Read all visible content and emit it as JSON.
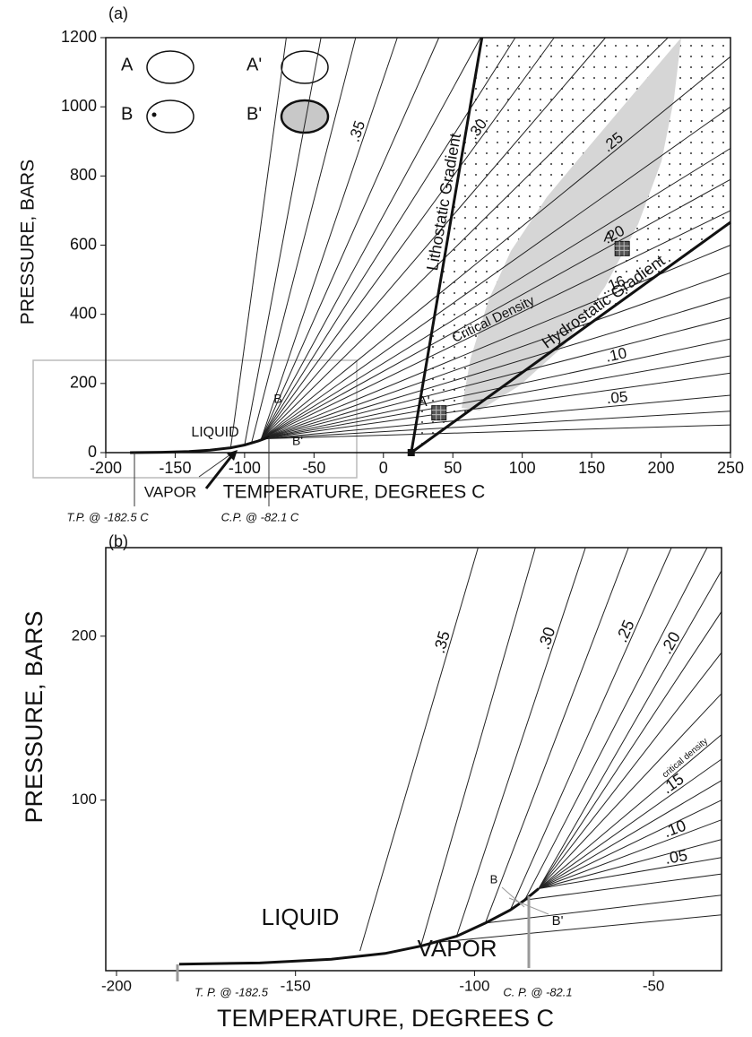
{
  "chart_data": [
    {
      "type": "line",
      "panel_label": "(a)",
      "x_label": "TEMPERATURE, DEGREES C",
      "y_label": "PRESSURE, BARS",
      "xlim": [
        -200,
        250
      ],
      "ylim": [
        0,
        1200
      ],
      "xticks": [
        -200,
        -150,
        -100,
        -50,
        0,
        50,
        100,
        150,
        200,
        250
      ],
      "yticks": [
        0,
        200,
        400,
        600,
        800,
        1000,
        1200
      ],
      "boiling_curve": {
        "x": [
          -182.5,
          -160,
          -140,
          -125,
          -110,
          -100,
          -90,
          -82.1
        ],
        "y": [
          0,
          1,
          3,
          7,
          14,
          22,
          34,
          46
        ]
      },
      "isochores": [
        {
          "x": [
            -110,
            -70
          ],
          "y": [
            15,
            1200
          ]
        },
        {
          "x": [
            -100,
            -45
          ],
          "y": [
            22,
            1200
          ]
        },
        {
          "x": [
            -95,
            -20
          ],
          "y": [
            28,
            1200
          ]
        },
        {
          "name": ".35",
          "x": [
            -88,
            10
          ],
          "y": [
            40,
            1200
          ]
        },
        {
          "x": [
            -88,
            40
          ],
          "y": [
            40,
            1200
          ]
        },
        {
          "x": [
            -88,
            70
          ],
          "y": [
            40,
            1200
          ]
        },
        {
          "x": [
            -88,
            95
          ],
          "y": [
            40,
            1200
          ]
        },
        {
          "name": ".30",
          "x": [
            -88,
            123
          ],
          "y": [
            40,
            1200
          ]
        },
        {
          "x": [
            -88,
            160
          ],
          "y": [
            40,
            1200
          ]
        },
        {
          "x": [
            -88,
            205
          ],
          "y": [
            40,
            1200
          ]
        },
        {
          "name": ".25",
          "x": [
            -88,
            250
          ],
          "y": [
            40,
            1145
          ]
        },
        {
          "x": [
            -88,
            250
          ],
          "y": [
            40,
            1000
          ]
        },
        {
          "x": [
            -88,
            250
          ],
          "y": [
            40,
            880
          ]
        },
        {
          "name": ".20",
          "x": [
            -88,
            250
          ],
          "y": [
            40,
            790
          ]
        },
        {
          "name": ".16",
          "x": [
            -88,
            250
          ],
          "y": [
            40,
            600
          ]
        },
        {
          "x": [
            -88,
            250
          ],
          "y": [
            40,
            520
          ]
        },
        {
          "x": [
            -88,
            250
          ],
          "y": [
            40,
            450
          ]
        },
        {
          "x": [
            -88,
            250
          ],
          "y": [
            40,
            390
          ]
        },
        {
          "name": ".10",
          "x": [
            -88,
            250
          ],
          "y": [
            40,
            329
          ]
        },
        {
          "x": [
            -88,
            250
          ],
          "y": [
            40,
            280
          ]
        },
        {
          "x": [
            -88,
            250
          ],
          "y": [
            40,
            230
          ]
        },
        {
          "name": ".05",
          "x": [
            -88,
            250
          ],
          "y": [
            40,
            166
          ]
        },
        {
          "x": [
            -88,
            250
          ],
          "y": [
            40,
            120
          ]
        },
        {
          "x": [
            -88,
            250
          ],
          "y": [
            40,
            80
          ]
        }
      ],
      "critical_density": {
        "name": "Critical Density",
        "x": [
          -88,
          250
        ],
        "y": [
          40,
          700
        ]
      },
      "gradients": [
        {
          "name": "Lithostatic Gradient",
          "x": [
            20,
            71
          ],
          "y": [
            0,
            1200
          ]
        },
        {
          "name": "Hydrostatic Gradient",
          "x": [
            20,
            250
          ],
          "y": [
            0,
            666
          ]
        }
      ],
      "points": [
        {
          "name": "A",
          "x": 172,
          "y": 590
        },
        {
          "name": "A'",
          "x": 40,
          "y": 115
        }
      ],
      "annotations": [
        "LIQUID",
        "VAPOR",
        "B",
        "B'",
        "T.P. @ -182.5 C",
        "C.P. @ -82.1 C"
      ],
      "legend": [
        "A",
        "B",
        "A'",
        "B'"
      ]
    },
    {
      "type": "line",
      "panel_label": "(b)",
      "x_label": "TEMPERATURE, DEGREES C",
      "y_label": "PRESSURE, BARS",
      "xlim": [
        -203,
        -31
      ],
      "ylim": [
        -4,
        254
      ],
      "xticks": [
        -200,
        -150,
        -100,
        -50
      ],
      "yticks": [
        100,
        200
      ],
      "boiling_curve": {
        "x": [
          -182.5,
          -160,
          -140,
          -125,
          -115,
          -105,
          -97,
          -90,
          -86,
          -82.1
        ],
        "y": [
          0,
          0.7,
          3,
          6.5,
          11,
          17,
          25,
          33,
          39,
          46
        ]
      },
      "isochores": [
        {
          "name": ".35",
          "x": [
            -132,
            -99
          ],
          "y": [
            8,
            254
          ]
        },
        {
          "x": [
            -115,
            -83
          ],
          "y": [
            11,
            254
          ]
        },
        {
          "name": ".30",
          "x": [
            -105,
            -69
          ],
          "y": [
            17,
            254
          ]
        },
        {
          "x": [
            -97,
            -57
          ],
          "y": [
            25,
            254
          ]
        },
        {
          "name": ".25",
          "x": [
            -90,
            -45
          ],
          "y": [
            33,
            254
          ]
        },
        {
          "x": [
            -86,
            -35
          ],
          "y": [
            39,
            254
          ]
        },
        {
          "name": ".20",
          "x": [
            -82.1,
            -31
          ],
          "y": [
            46,
            240
          ]
        },
        {
          "x": [
            -82.1,
            -31
          ],
          "y": [
            46,
            215
          ]
        },
        {
          "x": [
            -82.1,
            -31
          ],
          "y": [
            46,
            190
          ]
        },
        {
          "x": [
            -82.1,
            -31
          ],
          "y": [
            46,
            165
          ]
        },
        {
          "name": ".15",
          "x": [
            -82.1,
            -31
          ],
          "y": [
            46,
            125
          ]
        },
        {
          "x": [
            -82.1,
            -31
          ],
          "y": [
            46,
            112
          ]
        },
        {
          "x": [
            -82.1,
            -31
          ],
          "y": [
            46,
            100
          ]
        },
        {
          "name": ".10",
          "x": [
            -82.1,
            -31
          ],
          "y": [
            46,
            88
          ]
        },
        {
          "x": [
            -82.1,
            -31
          ],
          "y": [
            46,
            76
          ]
        },
        {
          "name": ".05",
          "x": [
            -82.1,
            -31
          ],
          "y": [
            46,
            65
          ]
        },
        {
          "x": [
            -86,
            -31
          ],
          "y": [
            39,
            55
          ]
        },
        {
          "x": [
            -97,
            -31
          ],
          "y": [
            25,
            42
          ]
        },
        {
          "x": [
            -112,
            -31
          ],
          "y": [
            13,
            30
          ]
        }
      ],
      "critical_density": {
        "name": "critical density",
        "x": [
          -82.1,
          -31
        ],
        "y": [
          46,
          140
        ]
      },
      "annotations": [
        "LIQUID",
        "VAPOR",
        "B",
        "B'",
        "T. P. @ -182.5",
        "C. P. @ -82.1"
      ]
    }
  ]
}
